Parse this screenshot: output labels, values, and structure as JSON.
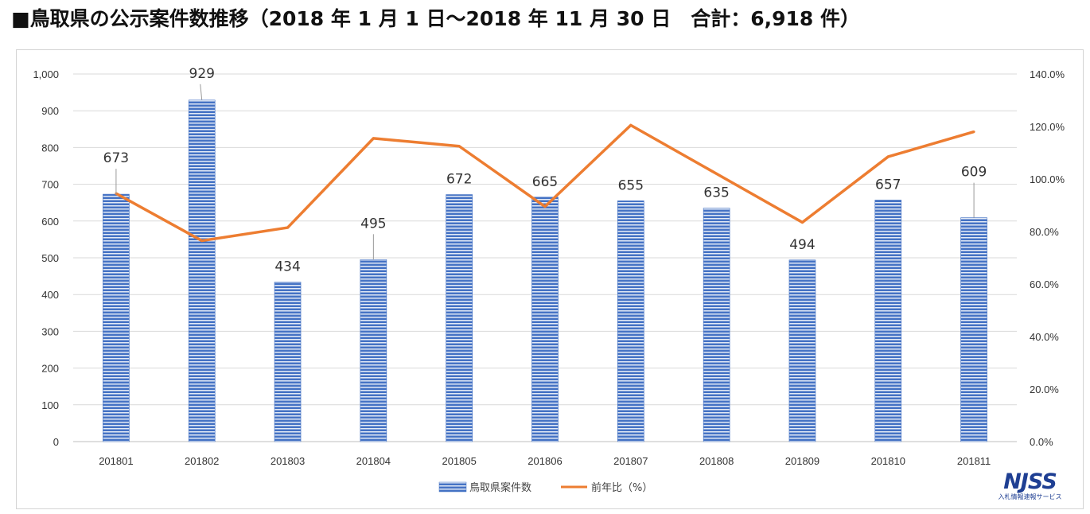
{
  "title": "■鳥取県の公示案件数推移（2018 年 1 月 1 日～2018 年 11 月 30 日　合計：6,918 件）",
  "logo": {
    "mark": "NJSS",
    "sub": "入札情報速報サービス"
  },
  "colors": {
    "bar": "#4472c4",
    "bar_stripe": "#ffffff",
    "line": "#ed7d31",
    "grid": "#d9d9d9",
    "axis": "#bfbfbf"
  },
  "chart_data": {
    "type": "bar",
    "categories": [
      "201801",
      "201802",
      "201803",
      "201804",
      "201805",
      "201806",
      "201807",
      "201808",
      "201809",
      "201810",
      "201811"
    ],
    "series": [
      {
        "name": "鳥取県案件数",
        "type": "bar",
        "axis": "left",
        "values": [
          673,
          929,
          434,
          495,
          672,
          665,
          655,
          635,
          494,
          657,
          609
        ],
        "labels": [
          "673",
          "929",
          "434",
          "495",
          "672",
          "665",
          "655",
          "635",
          "494",
          "657",
          "609"
        ]
      },
      {
        "name": "前年比（%）",
        "type": "line",
        "axis": "right",
        "values": [
          94.5,
          76.5,
          81.5,
          115.5,
          112.5,
          89.5,
          120.5,
          102.0,
          83.5,
          108.5,
          118.0
        ]
      }
    ],
    "left_axis": {
      "min": 0,
      "max": 1000,
      "ticks": [
        "0",
        "100",
        "200",
        "300",
        "400",
        "500",
        "600",
        "700",
        "800",
        "900",
        "1,000"
      ]
    },
    "right_axis": {
      "min": 0,
      "max": 140,
      "ticks": [
        "0.0%",
        "20.0%",
        "40.0%",
        "60.0%",
        "80.0%",
        "100.0%",
        "120.0%",
        "140.0%"
      ]
    },
    "grid": true,
    "legend_position": "bottom"
  }
}
